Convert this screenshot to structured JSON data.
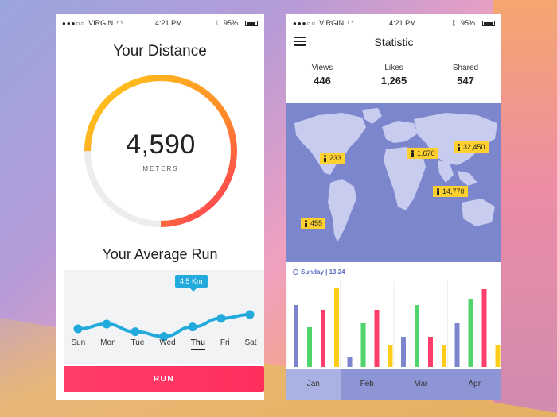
{
  "status_bar": {
    "carrier": "VIRGIN",
    "time": "4:21 PM",
    "battery": "95%",
    "dots": "●●●○○"
  },
  "distance_screen": {
    "title": "Your Distance",
    "distance_value": "4,590",
    "distance_unit": "METERS",
    "progress_fraction": 0.75,
    "average_title": "Your Average Run",
    "tooltip": "4,5 Km",
    "days": [
      "Sun",
      "Mon",
      "Tue",
      "Wed",
      "Thu",
      "Fri",
      "Sat"
    ],
    "active_day": "Thu",
    "run_values": [
      3.5,
      4.0,
      3.2,
      2.7,
      3.7,
      4.6,
      5.0
    ],
    "run_button": "RUN",
    "colors": {
      "ring_start": "#ffcc1a",
      "ring_end": "#ff2f5e",
      "line": "#22aadd",
      "button": "#ff3d6a"
    }
  },
  "statistic_screen": {
    "title": "Statistic",
    "stats": [
      {
        "label": "Views",
        "value": "446"
      },
      {
        "label": "Likes",
        "value": "1,265"
      },
      {
        "label": "Shared",
        "value": "547"
      }
    ],
    "map_pins": [
      {
        "value": "233"
      },
      {
        "value": "1,670"
      },
      {
        "value": "32,450"
      },
      {
        "value": "14,770"
      },
      {
        "value": "455"
      }
    ],
    "time_label": "Sunday | 13.24",
    "months": [
      "Jan",
      "Feb",
      "Mar",
      "Apr"
    ],
    "active_month": "Jan",
    "bar_colors": [
      "#7d86cc",
      "#4fd46b",
      "#ff3d6a",
      "#ffcc1a"
    ],
    "bar_groups": [
      [
        78,
        50,
        72,
        100
      ],
      [
        12,
        55,
        72,
        28
      ],
      [
        38,
        78,
        38,
        28
      ],
      [
        55,
        85,
        98,
        28
      ]
    ]
  }
}
